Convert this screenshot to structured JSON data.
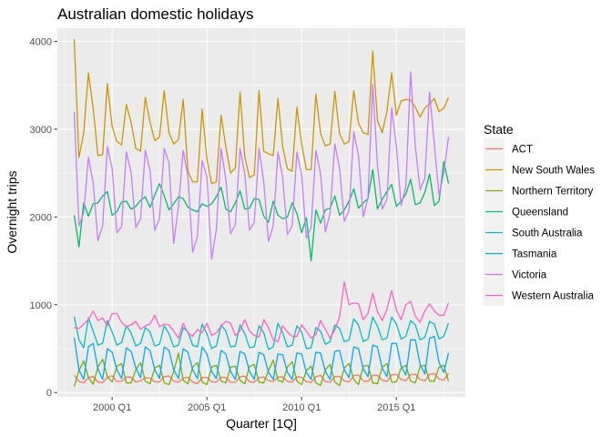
{
  "chart_data": {
    "type": "line",
    "title": "Australian domestic holidays",
    "xlabel": "Quarter [1Q]",
    "ylabel": "Overnight trips",
    "x_start": "1998 Q1",
    "x_end": "2017 Q4",
    "x_ticks": [
      {
        "label": "2000 Q1",
        "value": "2000 Q1"
      },
      {
        "label": "2005 Q1",
        "value": "2005 Q1"
      },
      {
        "label": "2010 Q1",
        "value": "2010 Q1"
      },
      {
        "label": "2015 Q1",
        "value": "2015 Q1"
      }
    ],
    "y_ticks": [
      0,
      1000,
      2000,
      3000,
      4000
    ],
    "ylim": [
      -50,
      4150
    ],
    "grid": true,
    "legend_title": "State",
    "legend_position": "right",
    "series": [
      {
        "name": "ACT",
        "color": "#F8766D",
        "values": [
          196,
          127,
          111,
          170,
          184,
          119,
          114,
          171,
          191,
          126,
          129,
          176,
          175,
          120,
          134,
          168,
          165,
          122,
          120,
          180,
          189,
          129,
          119,
          164,
          174,
          120,
          102,
          170,
          173,
          123,
          119,
          174,
          170,
          117,
          118,
          180,
          186,
          122,
          118,
          170,
          178,
          137,
          128,
          174,
          179,
          128,
          118,
          179,
          173,
          124,
          114,
          180,
          196,
          125,
          117,
          182,
          185,
          133,
          120,
          195,
          198,
          134,
          125,
          196,
          197,
          140,
          126,
          201,
          208,
          149,
          135,
          204,
          208,
          148,
          133,
          209,
          215,
          153,
          140,
          217
        ]
      },
      {
        "name": "New South Wales",
        "color": "#CD9600",
        "values": [
          4024,
          2675,
          2960,
          3640,
          3240,
          2700,
          2710,
          3520,
          3030,
          2860,
          2820,
          3280,
          3080,
          2780,
          2750,
          3360,
          3080,
          2870,
          2910,
          3440,
          2960,
          2830,
          2880,
          3340,
          2520,
          2400,
          2400,
          3230,
          2660,
          2380,
          2400,
          3160,
          2800,
          2500,
          2560,
          3420,
          2680,
          2450,
          2480,
          3440,
          2750,
          2720,
          2700,
          3350,
          2800,
          2550,
          2520,
          3250,
          2830,
          2540,
          2540,
          3400,
          2950,
          2810,
          2830,
          3430,
          2950,
          2830,
          2860,
          3440,
          3070,
          2960,
          2940,
          3890,
          3100,
          2960,
          3200,
          3640,
          3160,
          3320,
          3340,
          3330,
          3250,
          3140,
          3240,
          3290,
          3350,
          3200,
          3240,
          3360
        ]
      },
      {
        "name": "Northern Territory",
        "color": "#7CAE00",
        "values": [
          69,
          250,
          360,
          170,
          95,
          290,
          380,
          180,
          120,
          300,
          330,
          110,
          110,
          260,
          340,
          130,
          100,
          280,
          310,
          110,
          90,
          240,
          450,
          140,
          100,
          290,
          340,
          120,
          90,
          290,
          310,
          130,
          110,
          290,
          300,
          140,
          100,
          300,
          320,
          120,
          110,
          250,
          370,
          140,
          120,
          290,
          350,
          130,
          90,
          250,
          300,
          110,
          80,
          260,
          320,
          120,
          80,
          280,
          330,
          150,
          90,
          300,
          310,
          110,
          100,
          290,
          330,
          120,
          120,
          280,
          310,
          130,
          110,
          300,
          310,
          130,
          130,
          290,
          310,
          130
        ]
      },
      {
        "name": "Queensland",
        "color": "#00BE67",
        "values": [
          2020,
          1660,
          2160,
          2010,
          2150,
          2160,
          2240,
          2290,
          2020,
          2060,
          2170,
          2180,
          2090,
          2120,
          2190,
          2230,
          2110,
          2250,
          2380,
          2240,
          2080,
          2150,
          2230,
          2210,
          2110,
          2080,
          2060,
          2150,
          2120,
          2150,
          2230,
          2340,
          2090,
          2060,
          2160,
          2300,
          2090,
          2100,
          2210,
          2200,
          2010,
          1940,
          2180,
          2020,
          1980,
          2000,
          2160,
          2040,
          1820,
          1990,
          1500,
          2080,
          1930,
          2080,
          2100,
          2240,
          2020,
          2080,
          2180,
          2320,
          2100,
          2160,
          2210,
          2540,
          2090,
          2200,
          2290,
          2370,
          2120,
          2180,
          2260,
          2430,
          2140,
          2160,
          2280,
          2490,
          2130,
          2180,
          2630,
          2380
        ]
      },
      {
        "name": "South Australia",
        "color": "#00BFC4",
        "values": [
          866,
          600,
          510,
          850,
          700,
          540,
          560,
          820,
          690,
          540,
          570,
          760,
          680,
          530,
          560,
          740,
          690,
          530,
          550,
          760,
          670,
          520,
          540,
          740,
          690,
          540,
          520,
          780,
          670,
          500,
          530,
          770,
          700,
          520,
          530,
          770,
          670,
          510,
          520,
          760,
          680,
          490,
          520,
          790,
          680,
          520,
          540,
          760,
          690,
          500,
          510,
          740,
          700,
          550,
          580,
          770,
          730,
          580,
          600,
          840,
          770,
          580,
          610,
          860,
          760,
          600,
          620,
          860,
          780,
          610,
          640,
          820,
          770,
          600,
          630,
          810,
          780,
          610,
          640,
          790
        ]
      },
      {
        "name": "Tasmania",
        "color": "#00A9FF",
        "values": [
          625,
          260,
          150,
          520,
          560,
          270,
          150,
          500,
          460,
          260,
          160,
          510,
          470,
          280,
          170,
          520,
          480,
          260,
          160,
          520,
          480,
          260,
          160,
          500,
          460,
          260,
          160,
          520,
          440,
          240,
          160,
          480,
          440,
          240,
          150,
          470,
          440,
          240,
          150,
          460,
          430,
          230,
          150,
          440,
          430,
          230,
          150,
          450,
          440,
          230,
          150,
          460,
          450,
          240,
          150,
          470,
          480,
          260,
          170,
          520,
          500,
          270,
          180,
          540,
          520,
          280,
          180,
          560,
          560,
          300,
          200,
          600,
          600,
          320,
          210,
          620,
          640,
          340,
          230,
          450
        ]
      },
      {
        "name": "Victoria",
        "color": "#C77CFF",
        "values": [
          3200,
          1900,
          2050,
          2680,
          2390,
          1730,
          1900,
          2800,
          2560,
          1820,
          1890,
          2740,
          2510,
          1880,
          1980,
          2760,
          2530,
          1850,
          1980,
          2780,
          2620,
          1700,
          2120,
          2760,
          2460,
          1600,
          1780,
          2640,
          2460,
          1520,
          1860,
          2780,
          2430,
          1810,
          1910,
          2780,
          2490,
          1850,
          1940,
          2780,
          2400,
          1720,
          1900,
          2740,
          2450,
          1800,
          1900,
          2740,
          2480,
          1760,
          1880,
          2760,
          2490,
          1830,
          2040,
          2830,
          2560,
          1950,
          2070,
          2970,
          2700,
          2000,
          2220,
          3510,
          2590,
          2090,
          2200,
          3240,
          2800,
          2130,
          2350,
          3650,
          2800,
          2310,
          2440,
          3420,
          2830,
          2250,
          2500,
          2910
        ]
      },
      {
        "name": "Western Australia",
        "color": "#FF61C3",
        "values": [
          740,
          730,
          780,
          830,
          930,
          820,
          850,
          760,
          900,
          900,
          800,
          750,
          770,
          810,
          720,
          760,
          780,
          880,
          750,
          780,
          770,
          700,
          620,
          790,
          680,
          640,
          720,
          680,
          790,
          650,
          680,
          760,
          810,
          790,
          650,
          700,
          830,
          700,
          650,
          630,
          830,
          740,
          600,
          580,
          760,
          690,
          640,
          640,
          770,
          700,
          620,
          660,
          820,
          720,
          620,
          710,
          860,
          1260,
          1000,
          1020,
          1010,
          830,
          900,
          1130,
          920,
          820,
          950,
          1160,
          940,
          830,
          1000,
          1040,
          870,
          800,
          930,
          1010,
          930,
          880,
          880,
          1020
        ]
      }
    ]
  }
}
